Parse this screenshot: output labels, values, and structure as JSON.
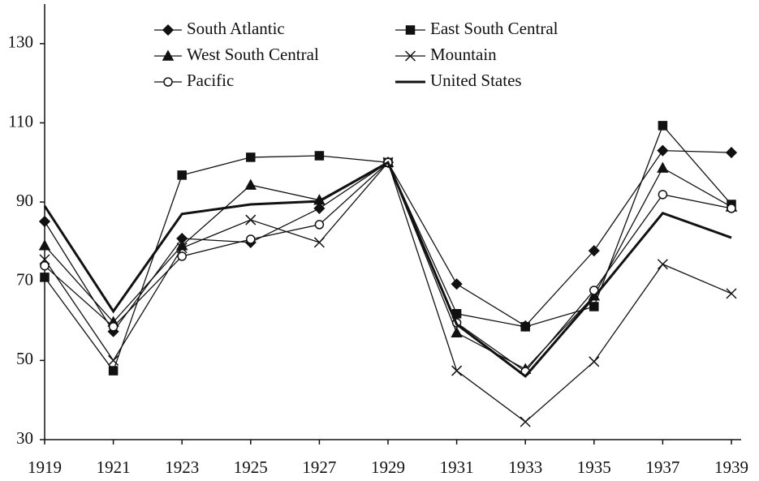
{
  "chart_data": {
    "type": "line",
    "x": [
      1919,
      1921,
      1923,
      1925,
      1927,
      1929,
      1931,
      1933,
      1935,
      1937,
      1939
    ],
    "xlim": [
      1919,
      1939
    ],
    "xticks": [
      1919,
      1921,
      1923,
      1925,
      1927,
      1929,
      1931,
      1933,
      1935,
      1937,
      1939
    ],
    "ylim": [
      30,
      140
    ],
    "yticks": [
      30,
      50,
      70,
      90,
      110,
      130
    ],
    "series": [
      {
        "name": "South Atlantic",
        "color": "#111111",
        "marker": "diamond",
        "values": [
          85.1,
          57.3,
          80.8,
          79.8,
          88.4,
          100,
          69.3,
          58.7,
          77.7,
          103,
          102.5
        ]
      },
      {
        "name": "East South Central",
        "color": "#111111",
        "marker": "square",
        "values": [
          71,
          47.4,
          96.8,
          101.3,
          101.7,
          100,
          61.8,
          58.5,
          63.6,
          109.3,
          89.4
        ]
      },
      {
        "name": "West South Central",
        "color": "#111111",
        "marker": "triangle",
        "values": [
          79,
          59.7,
          79,
          94.3,
          90.5,
          100,
          57,
          47.8,
          66.3,
          98.6,
          88.8
        ]
      },
      {
        "name": "Mountain",
        "color": "#111111",
        "marker": "x",
        "values": [
          75.5,
          50,
          78.4,
          85.5,
          79.8,
          100,
          47.4,
          34.5,
          49.7,
          74.3,
          66.9
        ]
      },
      {
        "name": "Pacific",
        "color": "#111111",
        "marker": "circle",
        "values": [
          73.9,
          58.5,
          76.3,
          80.6,
          84.3,
          100,
          59.5,
          47.2,
          67.7,
          91.9,
          88.4
        ]
      },
      {
        "name": "United States",
        "color": "#111111",
        "marker": "none",
        "values": [
          89,
          62.4,
          87,
          89.4,
          90.2,
          100,
          59.1,
          46,
          66,
          87.2,
          81
        ]
      }
    ]
  }
}
